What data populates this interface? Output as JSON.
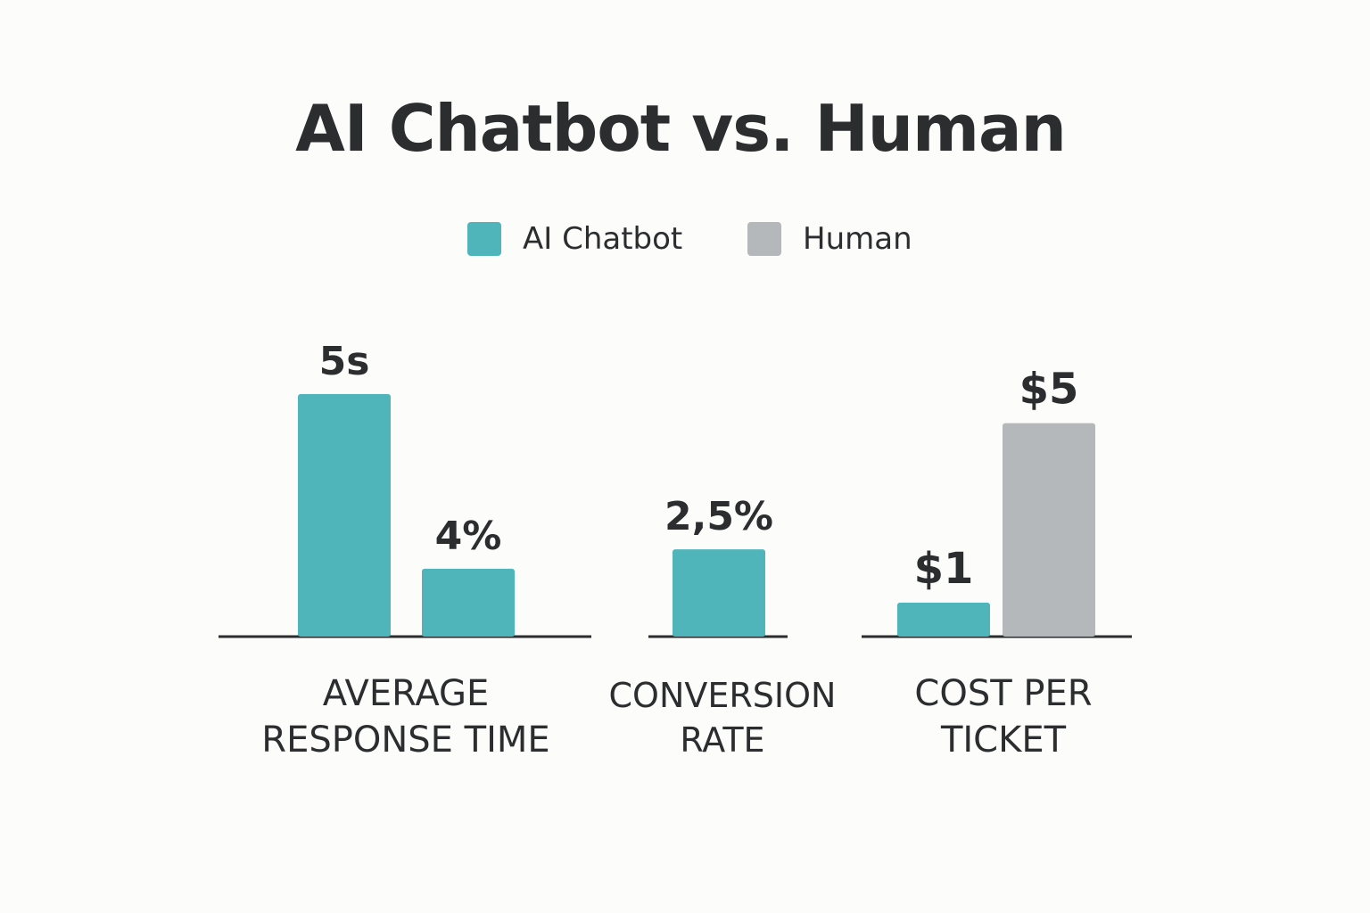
{
  "chart_data": {
    "type": "bar",
    "title": "AI Chatbot vs. Human",
    "categories": [
      "AVERAGE\nRESPONSE TIME",
      "CONVERSION\nRATE",
      "COST PER\nTICKET"
    ],
    "series": [
      {
        "name": "AI Chatbot",
        "color": "#4fb5bb"
      },
      {
        "name": "Human",
        "color": "#b5b8bb"
      }
    ],
    "bars": [
      {
        "category": 0,
        "series": 0,
        "value": 5,
        "label": "5s"
      },
      {
        "category": 0,
        "series": 0,
        "value": 1.4,
        "label": "4%"
      },
      {
        "category": 1,
        "series": 0,
        "value": 1.8,
        "label": "2,5%"
      },
      {
        "category": 2,
        "series": 0,
        "value": 0.7,
        "label": "$1"
      },
      {
        "category": 2,
        "series": 1,
        "value": 4.4,
        "label": "$5"
      }
    ],
    "xlabel": "",
    "ylabel": "",
    "ylim": [
      0,
      5
    ],
    "grid": false,
    "legend": "top-center"
  }
}
